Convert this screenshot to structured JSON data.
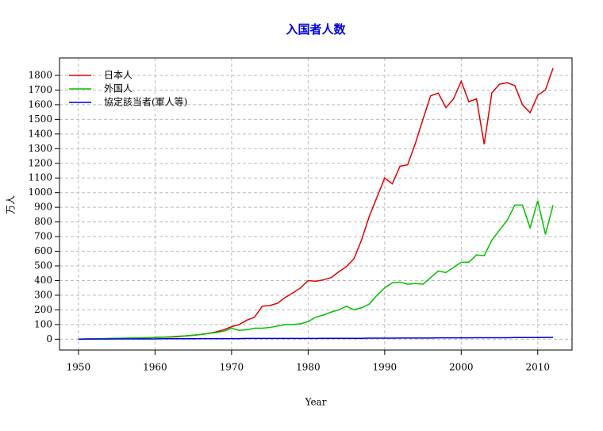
{
  "chart_data": {
    "type": "line",
    "title": "入国者人数",
    "x_label": "Year",
    "y_label": "万人",
    "x": [
      1950,
      1951,
      1952,
      1953,
      1954,
      1955,
      1956,
      1957,
      1958,
      1959,
      1960,
      1961,
      1962,
      1963,
      1964,
      1965,
      1966,
      1967,
      1968,
      1969,
      1970,
      1971,
      1972,
      1973,
      1974,
      1975,
      1976,
      1977,
      1978,
      1979,
      1980,
      1981,
      1982,
      1983,
      1984,
      1985,
      1986,
      1987,
      1988,
      1989,
      1990,
      1991,
      1992,
      1993,
      1994,
      1995,
      1996,
      1997,
      1998,
      1999,
      2000,
      2001,
      2002,
      2003,
      2004,
      2005,
      2006,
      2007,
      2008,
      2009,
      2010,
      2011,
      2012
    ],
    "series": [
      {
        "name": "日本人",
        "color": "#e00000",
        "values": [
          0,
          1,
          2,
          3,
          4,
          5,
          6,
          7,
          8,
          9,
          12,
          13,
          15,
          17,
          22,
          27,
          32,
          40,
          50,
          65,
          85,
          100,
          130,
          150,
          225,
          230,
          245,
          285,
          315,
          350,
          400,
          395,
          405,
          420,
          460,
          495,
          550,
          680,
          840,
          970,
          1100,
          1060,
          1180,
          1190,
          1335,
          1500,
          1660,
          1680,
          1580,
          1640,
          1760,
          1620,
          1640,
          1330,
          1680,
          1740,
          1750,
          1730,
          1600,
          1545,
          1665,
          1700,
          1850
        ]
      },
      {
        "name": "外国人",
        "color": "#00c000",
        "values": [
          1,
          2,
          3,
          4,
          5,
          6,
          7,
          8,
          9,
          10,
          12,
          14,
          17,
          20,
          23,
          27,
          32,
          40,
          45,
          55,
          75,
          60,
          65,
          75,
          75,
          80,
          90,
          100,
          100,
          105,
          120,
          150,
          165,
          185,
          200,
          225,
          200,
          215,
          240,
          300,
          350,
          385,
          390,
          375,
          380,
          375,
          420,
          465,
          455,
          490,
          525,
          525,
          575,
          570,
          675,
          745,
          810,
          915,
          915,
          760,
          945,
          715,
          915
        ]
      },
      {
        "name": "協定該当者(軍人等)",
        "color": "#0000e0",
        "values": [
          0,
          1,
          1,
          1,
          1,
          2,
          2,
          2,
          2,
          2,
          2,
          3,
          3,
          3,
          3,
          3,
          4,
          4,
          4,
          4,
          4,
          4,
          5,
          5,
          5,
          5,
          5,
          5,
          5,
          5,
          5,
          5,
          6,
          6,
          6,
          6,
          6,
          6,
          7,
          7,
          7,
          7,
          8,
          8,
          8,
          8,
          8,
          9,
          9,
          9,
          9,
          9,
          10,
          10,
          10,
          10,
          10,
          11,
          11,
          11,
          11,
          12,
          12
        ]
      }
    ],
    "xlim": [
      1947.52,
      2014.48
    ],
    "ylim": [
      -74,
      1919
    ],
    "xticks": [
      1950,
      1960,
      1970,
      1980,
      1990,
      2000,
      2010
    ],
    "yticks": [
      0,
      100,
      200,
      300,
      400,
      500,
      600,
      700,
      800,
      900,
      1000,
      1100,
      1200,
      1300,
      1400,
      1500,
      1600,
      1700,
      1800
    ],
    "grid": true,
    "legend": "top-left"
  }
}
